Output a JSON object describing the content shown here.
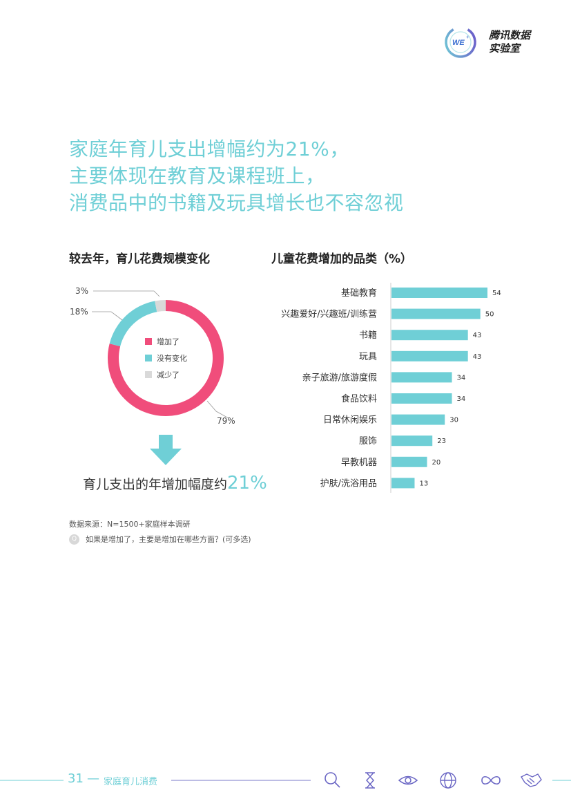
{
  "logo": {
    "badge": "WE",
    "name_line1": "腾讯数据",
    "name_line2": "实验室"
  },
  "headline": {
    "lines": [
      "家庭年育儿支出增幅约为21%，",
      "主要体现在教育及课程班上，",
      "消费品中的书籍及玩具增长也不容忽视"
    ]
  },
  "colors": {
    "accent": "#6fcfd6",
    "increase": "#f04d7b",
    "no_change": "#6fcfd6",
    "decrease": "#d9d9d9"
  },
  "chart_data": [
    {
      "type": "pie",
      "title": "较去年，育儿花费规模变化",
      "categories": [
        "增加了",
        "没有变化",
        "减少了"
      ],
      "values": [
        79,
        18,
        3
      ],
      "value_labels": [
        "79%",
        "18%",
        "3%"
      ],
      "legend_placement": "center"
    },
    {
      "type": "bar",
      "orientation": "horizontal",
      "title": "儿童花费增加的品类（%）",
      "categories": [
        "基础教育",
        "兴趣爱好/兴趣班/训练营",
        "书籍",
        "玩具",
        "亲子旅游/旅游度假",
        "食品饮料",
        "日常休闲娱乐",
        "服饰",
        "早教机器",
        "护肤/洗浴用品"
      ],
      "values": [
        54,
        50,
        43,
        43,
        34,
        34,
        30,
        23,
        20,
        13
      ],
      "xlim": [
        0,
        60
      ]
    }
  ],
  "summary": {
    "text": "育儿支出的年增加幅度约",
    "value": "21%"
  },
  "source": "数据来源：N=1500+家庭样本调研",
  "question": {
    "icon": "Q",
    "text": "如果是增加了，主要是增加在哪些方面？(可多选)"
  },
  "footer": {
    "page": "31",
    "dash": "—",
    "section": "家庭育儿消费",
    "icons": [
      "search-icon",
      "hourglass-icon",
      "eye-icon",
      "globe-icon",
      "infinity-icon",
      "handshake-icon"
    ]
  }
}
